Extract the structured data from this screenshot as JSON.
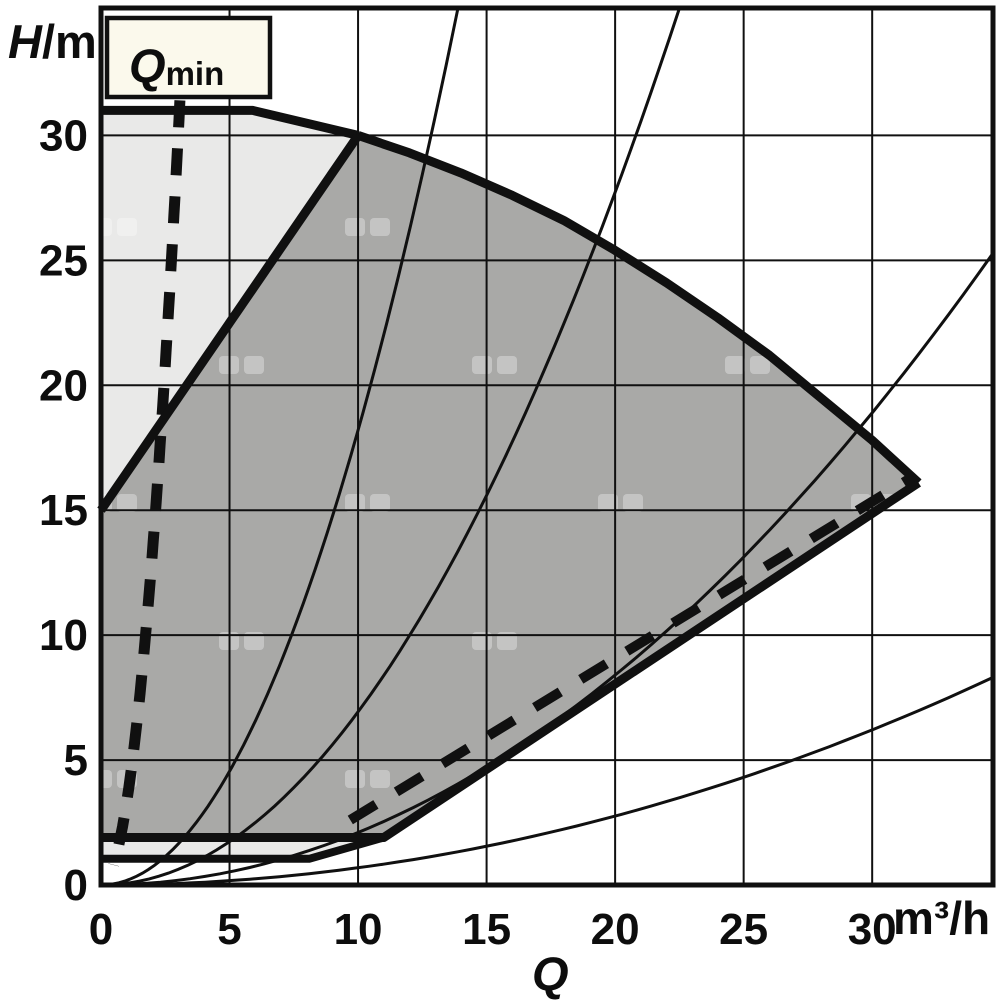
{
  "colors": {
    "light_region": "#e9e9e8",
    "dark_region": "#a9a9a7",
    "box_fill": "#fbf9ec",
    "line": "#101010",
    "background": "#ffffff"
  },
  "chart_data": {
    "type": "area",
    "description": "Pump duty/operating range chart: head H (m) versus flow Q (m3/h) with shaded control ranges, Qmin limit line and system characteristic parabolas",
    "xlabel": "Q",
    "x_unit": "m³/h",
    "ylabel_main": "H",
    "ylabel_unit": "/m",
    "xlim": [
      0,
      34.7
    ],
    "ylim": [
      0,
      35.1
    ],
    "x_ticks": [
      0,
      5,
      10,
      15,
      20,
      25,
      30
    ],
    "y_ticks": [
      0,
      5,
      10,
      15,
      20,
      25,
      30
    ],
    "grid": true,
    "annotation": {
      "main": "Q",
      "sub": "min",
      "position": "top-left"
    },
    "regions": [
      {
        "name": "upper-left-light-field",
        "fill_key": "light_region",
        "points": [
          [
            0,
            15
          ],
          [
            0,
            31
          ],
          [
            5.9,
            31
          ],
          [
            10,
            30
          ]
        ]
      },
      {
        "name": "main-operating-field",
        "fill_key": "dark_region",
        "points": [
          [
            0,
            1.85
          ],
          [
            0,
            15
          ],
          [
            10,
            30
          ],
          [
            12,
            29.3
          ],
          [
            14,
            28.5
          ],
          [
            16,
            27.6
          ],
          [
            18,
            26.6
          ],
          [
            20,
            25.4
          ],
          [
            22,
            24.1
          ],
          [
            24,
            22.7
          ],
          [
            26,
            21.2
          ],
          [
            28,
            19.5
          ],
          [
            30,
            17.8
          ],
          [
            31.8,
            16.1
          ],
          [
            11,
            1.9
          ]
        ]
      },
      {
        "name": "bottom-light-sliver",
        "fill_key": "light_region",
        "points": [
          [
            0,
            1.85
          ],
          [
            10.9,
            1.9
          ],
          [
            8.1,
            1.05
          ],
          [
            0,
            1.05
          ]
        ]
      }
    ],
    "boundary_lines": [
      {
        "name": "top-max-curve-small",
        "style": "solid",
        "width": 9,
        "points": [
          [
            0,
            31
          ],
          [
            5.9,
            31
          ],
          [
            10,
            30
          ]
        ]
      },
      {
        "name": "field-diagonal-boundary",
        "style": "solid",
        "width": 9,
        "points": [
          [
            0,
            15
          ],
          [
            10,
            30
          ]
        ]
      },
      {
        "name": "max-speed-curve",
        "style": "solid",
        "width": 9,
        "points": [
          [
            10,
            30
          ],
          [
            12,
            29.3
          ],
          [
            14,
            28.5
          ],
          [
            16,
            27.6
          ],
          [
            18,
            26.6
          ],
          [
            20,
            25.4
          ],
          [
            22,
            24.1
          ],
          [
            24,
            22.7
          ],
          [
            26,
            21.2
          ],
          [
            28,
            19.5
          ],
          [
            30,
            17.8
          ],
          [
            31.8,
            16.1
          ]
        ]
      },
      {
        "name": "lower-boundary",
        "style": "solid",
        "width": 9,
        "points": [
          [
            31.8,
            16.1
          ],
          [
            11,
            1.9
          ],
          [
            0,
            1.9
          ]
        ]
      },
      {
        "name": "sliver-lower-boundary",
        "style": "solid",
        "width": 8,
        "points": [
          [
            0,
            1.05
          ],
          [
            8.1,
            1.05
          ],
          [
            11,
            1.9
          ]
        ]
      },
      {
        "name": "min-speed-curve-dashed",
        "style": "dashed",
        "width": 10,
        "dash": [
          30,
          24
        ],
        "points": [
          [
            9.7,
            2.6
          ],
          [
            31.6,
            16.35
          ]
        ]
      }
    ],
    "qmin_line": {
      "style": "dashed",
      "width": 11,
      "dash": [
        27,
        21
      ],
      "parabola_k": 3.33,
      "h_range": [
        0.8,
        31.4
      ]
    },
    "system_curves": {
      "width": 3,
      "parabola_k": [
        0.182,
        0.0693,
        0.021,
        0.0069
      ]
    }
  }
}
